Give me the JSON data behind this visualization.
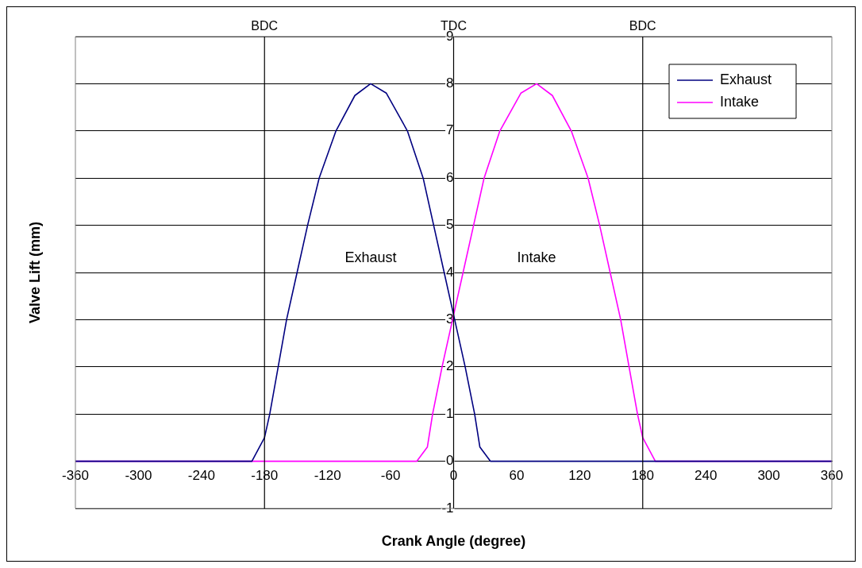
{
  "chart_data": {
    "type": "line",
    "xlabel": "Crank Angle (degree)",
    "ylabel": "Valve Lift (mm)",
    "xlim": [
      -360,
      360
    ],
    "xticks": [
      -360,
      -300,
      -240,
      -180,
      -120,
      -60,
      0,
      60,
      120,
      180,
      240,
      300,
      360
    ],
    "ylim": [
      -1,
      9
    ],
    "yticks": [
      -1,
      0,
      1,
      2,
      3,
      4,
      5,
      6,
      7,
      8,
      9
    ],
    "grid": "y",
    "legend": "top right",
    "marker": "none",
    "line_style": "solid",
    "series": [
      {
        "name": "Exhaust",
        "color": "#000080",
        "x": [
          -360,
          -192,
          -180,
          -175,
          -167,
          -159,
          -149,
          -139,
          -128,
          -112,
          -94,
          -79,
          -64,
          -44,
          -29,
          -19,
          -9,
          1,
          11,
          20,
          25,
          35,
          360
        ],
        "values": [
          0,
          0,
          0.5,
          1,
          2,
          3,
          4,
          5,
          6,
          7,
          7.75,
          8,
          7.8,
          7,
          6,
          5,
          4,
          3,
          2,
          1,
          0.3,
          0,
          0
        ]
      },
      {
        "name": "Intake",
        "color": "#ff00ff",
        "x": [
          -360,
          -35,
          -25,
          -20,
          -11,
          -1,
          9,
          19,
          29,
          44,
          64,
          79,
          94,
          112,
          128,
          139,
          149,
          159,
          167,
          175,
          180,
          192,
          360
        ],
        "values": [
          0,
          0,
          0.3,
          1,
          2,
          3,
          4,
          5,
          6,
          7,
          7.8,
          8,
          7.75,
          7,
          6,
          5,
          4,
          3,
          2,
          1,
          0.5,
          0,
          0
        ]
      }
    ],
    "ref_lines": [
      {
        "axis": "x",
        "value": -180,
        "label": "BDC",
        "color": "#000000"
      },
      {
        "axis": "x",
        "value": 0,
        "label": "TDC",
        "color": "#000000"
      },
      {
        "axis": "x",
        "value": 180,
        "label": "BDC",
        "color": "#000000"
      }
    ],
    "annotations": [
      "Exhaust",
      "Intake"
    ]
  }
}
